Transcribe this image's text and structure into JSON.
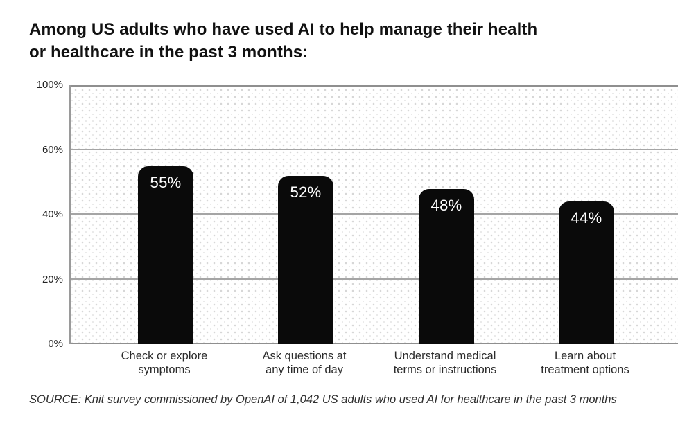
{
  "header": {
    "title_line1": "Among US adults who have used AI to help manage their health",
    "title_line2": "or healthcare in the past 3 months:"
  },
  "footer": {
    "source": "SOURCE: Knit survey commissioned by OpenAI of 1,042 US adults who used AI for healthcare in the past 3 months"
  },
  "colors": {
    "bar": "#0a0a0a",
    "bar_value_text": "#ffffff",
    "gridline": "#a5a5a5",
    "axis_line": "#8f8f8f",
    "title_text": "#111111",
    "tick_text": "#222222",
    "category_text": "#2b2b2b",
    "source_text": "#2e2e2e",
    "plot_dot_pattern": "#d7d7d7",
    "background": "#ffffff"
  },
  "chart_data": {
    "type": "bar",
    "title": "Among US adults who have used AI to help manage their health or healthcare in the past 3 months:",
    "categories": [
      "Check or explore symptoms",
      "Ask questions at any time of day",
      "Understand medical terms or instructions",
      "Learn about treatment options"
    ],
    "category_labels": [
      "Check or explore\nsymptoms",
      "Ask questions at\nany time of day",
      "Understand medical\nterms or instructions",
      "Learn about\ntreatment options"
    ],
    "values": [
      55,
      52,
      48,
      44
    ],
    "value_labels": [
      "55%",
      "52%",
      "48%",
      "44%"
    ],
    "yticks": [
      "0%",
      "20%",
      "40%",
      "60%",
      "100%"
    ],
    "ytick_spacing": "equal",
    "xlabel": "",
    "ylabel": "",
    "grid": "horizontal",
    "legend": "none",
    "bar_corner": "rounded-top",
    "source": "SOURCE: Knit survey commissioned by OpenAI of 1,042 US adults who used AI for healthcare in the past 3 months"
  }
}
